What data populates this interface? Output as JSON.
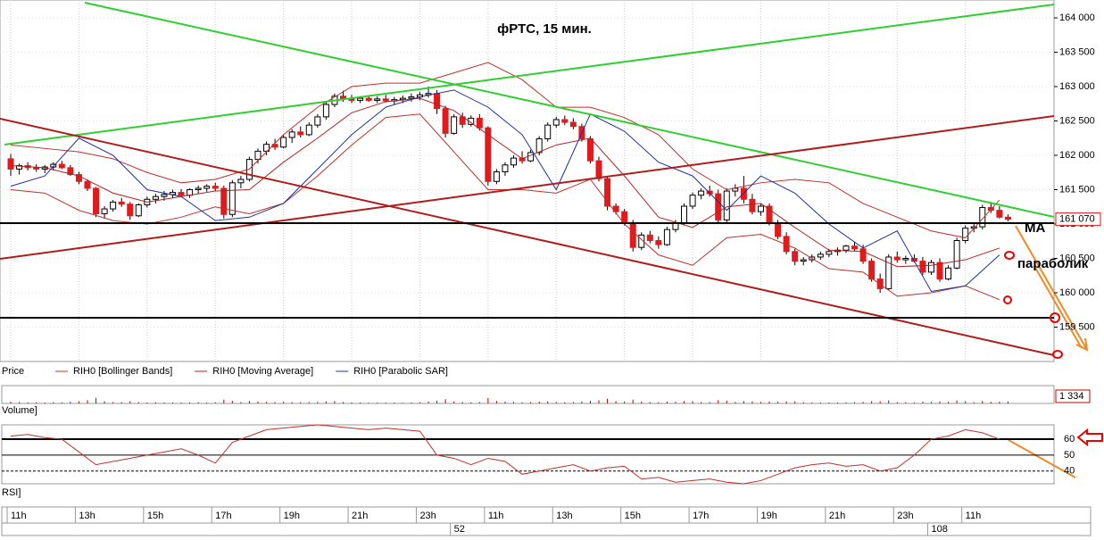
{
  "chart_data": {
    "type": "candlestick",
    "title": "фРТС,  15 мин.",
    "annotations": [
      "MA",
      "параболик"
    ],
    "xlim": [
      -1.26,
      122.4
    ],
    "xticks": [
      {
        "value": 0,
        "label": "11h"
      },
      {
        "value": 8,
        "label": "13h"
      },
      {
        "value": 16,
        "label": "15h"
      },
      {
        "value": 24,
        "label": "17h"
      },
      {
        "value": 32,
        "label": "19h"
      },
      {
        "value": 40,
        "label": "21h"
      },
      {
        "value": 48,
        "label": "23h"
      },
      {
        "value": 56,
        "label": "11h"
      },
      {
        "value": 64,
        "label": "13h"
      },
      {
        "value": 72,
        "label": "15h"
      },
      {
        "value": 80,
        "label": "17h"
      },
      {
        "value": 88,
        "label": "19h"
      },
      {
        "value": 96,
        "label": "21h"
      },
      {
        "value": 104,
        "label": "23h"
      },
      {
        "value": 112,
        "label": "11h"
      }
    ],
    "day_ticks": [
      52,
      108
    ],
    "price": {
      "label": "Price",
      "ylim": [
        159000,
        164260
      ],
      "yticks": [
        {
          "value": 159500,
          "label": "159 500"
        },
        {
          "value": 160000,
          "label": "160 000"
        },
        {
          "value": 160500,
          "label": "160 500"
        },
        {
          "value": 161000,
          "label": "161 000"
        },
        {
          "value": 161500,
          "label": "161 500"
        },
        {
          "value": 162000,
          "label": "162 000"
        },
        {
          "value": 162500,
          "label": "162 500"
        },
        {
          "value": 163000,
          "label": "163 000"
        },
        {
          "value": 163500,
          "label": "163 500"
        },
        {
          "value": 164000,
          "label": "164 000"
        }
      ],
      "grid": true,
      "up_color": "#ffffff",
      "down_color": "#e31a1c",
      "outline": "#000000",
      "last": {
        "value": 161070,
        "label": "161 070"
      },
      "ohlc": [
        [
          161950,
          162020,
          161700,
          161800
        ],
        [
          161800,
          161880,
          161720,
          161850
        ],
        [
          161850,
          161900,
          161780,
          161820
        ],
        [
          161820,
          161870,
          161760,
          161800
        ],
        [
          161800,
          161860,
          161740,
          161830
        ],
        [
          161830,
          161900,
          161780,
          161870
        ],
        [
          161870,
          161920,
          161800,
          161820
        ],
        [
          161820,
          161860,
          161700,
          161720
        ],
        [
          161720,
          161760,
          161580,
          161620
        ],
        [
          161620,
          161650,
          161480,
          161520
        ],
        [
          161520,
          161540,
          161100,
          161150
        ],
        [
          161150,
          161260,
          161080,
          161220
        ],
        [
          161220,
          161350,
          161180,
          161320
        ],
        [
          161320,
          161380,
          161250,
          161290
        ],
        [
          161290,
          161320,
          161060,
          161120
        ],
        [
          161120,
          161300,
          161100,
          161280
        ],
        [
          161280,
          161400,
          161240,
          161360
        ],
        [
          161360,
          161440,
          161300,
          161400
        ],
        [
          161400,
          161480,
          161340,
          161430
        ],
        [
          161430,
          161500,
          161380,
          161460
        ],
        [
          161460,
          161510,
          161400,
          161420
        ],
        [
          161420,
          161520,
          161380,
          161500
        ],
        [
          161500,
          161560,
          161440,
          161520
        ],
        [
          161520,
          161580,
          161470,
          161550
        ],
        [
          161550,
          161600,
          161480,
          161520
        ],
        [
          161520,
          161560,
          161080,
          161140
        ],
        [
          161140,
          161640,
          161100,
          161600
        ],
        [
          161600,
          161700,
          161520,
          161650
        ],
        [
          161650,
          161980,
          161620,
          161940
        ],
        [
          161940,
          162100,
          161880,
          162060
        ],
        [
          162060,
          162200,
          162000,
          162160
        ],
        [
          162160,
          162240,
          162080,
          162120
        ],
        [
          162120,
          162300,
          162100,
          162260
        ],
        [
          162260,
          162380,
          162180,
          162340
        ],
        [
          162340,
          162420,
          162260,
          162300
        ],
        [
          162300,
          162480,
          162280,
          162440
        ],
        [
          162440,
          162600,
          162400,
          162560
        ],
        [
          162560,
          162780,
          162520,
          162740
        ],
        [
          162740,
          162900,
          162700,
          162860
        ],
        [
          162860,
          162940,
          162780,
          162820
        ],
        [
          162820,
          162880,
          162760,
          162800
        ],
        [
          162800,
          162860,
          162760,
          162830
        ],
        [
          162830,
          162870,
          162780,
          162800
        ],
        [
          162800,
          162860,
          162760,
          162820
        ],
        [
          162820,
          162880,
          162770,
          162790
        ],
        [
          162790,
          162850,
          162740,
          162810
        ],
        [
          162810,
          162870,
          162760,
          162830
        ],
        [
          162830,
          162900,
          162780,
          162850
        ],
        [
          162850,
          162920,
          162800,
          162880
        ],
        [
          162880,
          163000,
          162840,
          162900
        ],
        [
          162900,
          162950,
          162600,
          162680
        ],
        [
          162680,
          162720,
          162260,
          162320
        ],
        [
          162320,
          162600,
          162300,
          162560
        ],
        [
          162560,
          162620,
          162400,
          162450
        ],
        [
          162450,
          162580,
          162420,
          162540
        ],
        [
          162540,
          162600,
          162360,
          162400
        ],
        [
          162400,
          162420,
          161560,
          161620
        ],
        [
          161620,
          161800,
          161580,
          161760
        ],
        [
          161760,
          161900,
          161700,
          161860
        ],
        [
          161860,
          162000,
          161820,
          161960
        ],
        [
          161960,
          162060,
          161880,
          161920
        ],
        [
          161920,
          162080,
          161900,
          162040
        ],
        [
          162040,
          162280,
          162000,
          162240
        ],
        [
          162240,
          162480,
          162200,
          162440
        ],
        [
          162440,
          162560,
          162400,
          162520
        ],
        [
          162520,
          162580,
          162440,
          162480
        ],
        [
          162480,
          162540,
          162380,
          162420
        ],
        [
          162420,
          162460,
          162200,
          162240
        ],
        [
          162240,
          162280,
          161880,
          161920
        ],
        [
          161920,
          161980,
          161620,
          161660
        ],
        [
          161660,
          161700,
          161200,
          161260
        ],
        [
          161260,
          161300,
          161140,
          161180
        ],
        [
          161180,
          161220,
          160980,
          161020
        ],
        [
          161020,
          161060,
          160600,
          160660
        ],
        [
          160660,
          160880,
          160620,
          160840
        ],
        [
          160840,
          160900,
          160720,
          160760
        ],
        [
          160760,
          160820,
          160640,
          160700
        ],
        [
          160700,
          160960,
          160680,
          160920
        ],
        [
          160920,
          161060,
          160880,
          161020
        ],
        [
          161020,
          161300,
          160980,
          161260
        ],
        [
          161260,
          161460,
          161220,
          161420
        ],
        [
          161420,
          161520,
          161360,
          161480
        ],
        [
          161480,
          161560,
          161400,
          161440
        ],
        [
          161440,
          161500,
          161000,
          161060
        ],
        [
          161060,
          161520,
          161020,
          161480
        ],
        [
          161480,
          161580,
          161400,
          161520
        ],
        [
          161520,
          161700,
          161300,
          161360
        ],
        [
          161360,
          161440,
          161140,
          161180
        ],
        [
          161180,
          161300,
          161120,
          161260
        ],
        [
          161260,
          161300,
          160980,
          161020
        ],
        [
          161020,
          161060,
          160780,
          160820
        ],
        [
          160820,
          160880,
          160560,
          160600
        ],
        [
          160600,
          160640,
          160400,
          160460
        ],
        [
          160460,
          160520,
          160400,
          160480
        ],
        [
          160480,
          160560,
          160440,
          160520
        ],
        [
          160520,
          160600,
          160480,
          160560
        ],
        [
          160560,
          160640,
          160520,
          160600
        ],
        [
          160600,
          160660,
          160540,
          160620
        ],
        [
          160620,
          160700,
          160580,
          160680
        ],
        [
          160680,
          160740,
          160600,
          160640
        ],
        [
          160640,
          160700,
          160420,
          160460
        ],
        [
          160460,
          160500,
          160160,
          160200
        ],
        [
          160200,
          160280,
          160000,
          160060
        ],
        [
          160060,
          160560,
          160040,
          160520
        ],
        [
          160520,
          160600,
          160440,
          160480
        ],
        [
          160480,
          160540,
          160420,
          160500
        ],
        [
          160500,
          160560,
          160440,
          160460
        ],
        [
          160460,
          160520,
          160260,
          160300
        ],
        [
          160300,
          160480,
          160260,
          160440
        ],
        [
          160440,
          160500,
          160160,
          160200
        ],
        [
          160200,
          160400,
          160180,
          160360
        ],
        [
          160360,
          160800,
          160340,
          160760
        ],
        [
          160760,
          160980,
          160720,
          160940
        ],
        [
          160940,
          161000,
          160880,
          160960
        ],
        [
          160960,
          161280,
          160920,
          161240
        ],
        [
          161240,
          161320,
          161160,
          161200
        ],
        [
          161200,
          161260,
          161080,
          161100
        ],
        [
          161100,
          161140,
          161040,
          161070
        ]
      ]
    },
    "indicator_x": [
      0,
      4,
      8,
      12,
      16,
      20,
      24,
      28,
      32,
      36,
      40,
      44,
      48,
      52,
      56,
      60,
      64,
      68,
      72,
      76,
      80,
      84,
      88,
      92,
      96,
      100,
      104,
      108,
      112,
      116
    ],
    "indicators": [
      {
        "name": "RIH0 [Bollinger Bands]",
        "color": "#c0302a",
        "upper": [
          162150,
          162100,
          162050,
          161950,
          161750,
          161600,
          161650,
          161800,
          162300,
          162700,
          163000,
          163050,
          163050,
          163200,
          163350,
          163100,
          162700,
          162700,
          162550,
          162300,
          161800,
          161500,
          161600,
          161650,
          161600,
          161300,
          161100,
          160900,
          160800,
          161350
        ],
        "lower": [
          161500,
          161450,
          161200,
          161050,
          161000,
          161100,
          161250,
          161150,
          161300,
          161700,
          162150,
          162550,
          162600,
          162050,
          161500,
          161500,
          161450,
          161650,
          161000,
          160550,
          160400,
          160800,
          160850,
          160650,
          160350,
          160300,
          159950,
          160000,
          160100,
          159900
        ]
      },
      {
        "name": "RIH0 [Moving Average]",
        "color": "#b22222",
        "values": [
          161850,
          161820,
          161700,
          161450,
          161320,
          161400,
          161480,
          161500,
          161900,
          162250,
          162620,
          162780,
          162830,
          162650,
          162300,
          161950,
          162150,
          162250,
          161700,
          161100,
          160950,
          161250,
          161300,
          160950,
          160620,
          160600,
          160380,
          160400,
          160480,
          160650
        ]
      },
      {
        "name": "RIH0 [Parabolic SAR]",
        "color": "#1f2f9e",
        "values": [
          161550,
          161700,
          162250,
          162000,
          161500,
          161400,
          161050,
          161100,
          161300,
          161800,
          162300,
          162700,
          162850,
          162950,
          162700,
          162300,
          161500,
          162600,
          162350,
          161900,
          161700,
          161200,
          161700,
          161450,
          161000,
          160650,
          160900,
          160020,
          160100,
          160550
        ]
      }
    ],
    "volume": {
      "label": "Volume]",
      "color": "#c00000",
      "ylim": [
        0,
        12000
      ],
      "last": {
        "value": 1334,
        "label": "1 334"
      },
      "values": [
        1200,
        900,
        700,
        800,
        600,
        900,
        700,
        1100,
        1500,
        2200,
        3800,
        1400,
        900,
        800,
        1600,
        900,
        700,
        800,
        600,
        700,
        600,
        700,
        800,
        600,
        700,
        2600,
        1800,
        900,
        1700,
        1300,
        1000,
        900,
        1100,
        900,
        800,
        900,
        1000,
        1400,
        1600,
        900,
        700,
        600,
        500,
        600,
        500,
        600,
        500,
        700,
        800,
        1200,
        1900,
        2800,
        1300,
        900,
        800,
        900,
        3600,
        1700,
        1200,
        1000,
        800,
        900,
        1300,
        1500,
        1000,
        800,
        900,
        1400,
        1800,
        2100,
        3200,
        1600,
        1400,
        2600,
        1300,
        900,
        800,
        1200,
        1100,
        1500,
        1600,
        1000,
        900,
        2200,
        1900,
        1000,
        1600,
        1400,
        1000,
        1300,
        1200,
        1500,
        1400,
        800,
        700,
        600,
        700,
        600,
        700,
        800,
        1100,
        1600,
        1500,
        2100,
        900,
        800,
        700,
        1200,
        1000,
        1400,
        1100,
        2000,
        1500,
        900,
        1700,
        1100,
        1200,
        1334
      ]
    },
    "rsi": {
      "label": "RSI]",
      "color": "#c0302a",
      "ylim": [
        32,
        69
      ],
      "yticks": [
        40,
        50,
        60
      ],
      "x": [
        0,
        2,
        4,
        6,
        8,
        10,
        12,
        14,
        16,
        18,
        20,
        22,
        24,
        26,
        28,
        30,
        32,
        34,
        36,
        38,
        40,
        42,
        44,
        46,
        48,
        50,
        52,
        54,
        56,
        58,
        60,
        62,
        64,
        66,
        68,
        70,
        72,
        74,
        76,
        78,
        80,
        82,
        84,
        86,
        88,
        90,
        92,
        94,
        96,
        98,
        100,
        102,
        104,
        106,
        108,
        110,
        112,
        114,
        116
      ],
      "values": [
        62,
        63,
        61,
        60,
        52,
        44,
        46,
        48,
        50,
        52,
        54,
        50,
        45,
        58,
        62,
        66,
        67,
        68,
        69,
        68,
        67,
        66,
        67,
        66,
        65,
        50,
        48,
        44,
        48,
        46,
        38,
        40,
        42,
        44,
        40,
        42,
        43,
        35,
        36,
        33,
        34,
        35,
        33,
        32,
        34,
        38,
        42,
        44,
        45,
        43,
        44,
        40,
        42,
        50,
        60,
        62,
        66,
        64,
        60
      ]
    }
  }
}
